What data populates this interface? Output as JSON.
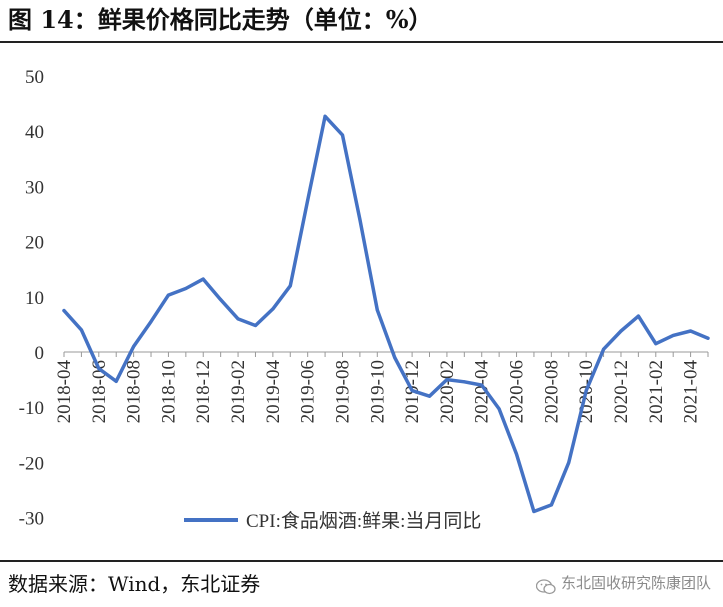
{
  "figure": {
    "title": "图 14：鲜果价格同比走势（单位：%）",
    "source": "数据来源：Wind，东北证券",
    "watermark": "东北固收研究陈康团队",
    "watermark_icon": "wechat-icon"
  },
  "colors": {
    "line": "#4472C4",
    "axis": "#999999",
    "text": "#333333"
  },
  "chart_data": {
    "type": "line",
    "title": "",
    "xlabel": "",
    "ylabel": "",
    "ylim": [
      -30,
      50
    ],
    "yticks": [
      -30,
      -20,
      -10,
      0,
      10,
      20,
      30,
      40,
      50
    ],
    "grid": false,
    "legend_position": "bottom-center",
    "x": [
      "2018-04",
      "2018-05",
      "2018-06",
      "2018-07",
      "2018-08",
      "2018-09",
      "2018-10",
      "2018-11",
      "2018-12",
      "2019-01",
      "2019-02",
      "2019-03",
      "2019-04",
      "2019-05",
      "2019-06",
      "2019-07",
      "2019-08",
      "2019-09",
      "2019-10",
      "2019-11",
      "2019-12",
      "2020-01",
      "2020-02",
      "2020-03",
      "2020-04",
      "2020-05",
      "2020-06",
      "2020-07",
      "2020-08",
      "2020-09",
      "2020-10",
      "2020-11",
      "2020-12",
      "2021-01",
      "2021-02",
      "2021-03",
      "2021-04",
      "2021-05"
    ],
    "xtick_labels": [
      "2018-04",
      "2018-06",
      "2018-08",
      "2018-10",
      "2018-12",
      "2019-02",
      "2019-04",
      "2019-06",
      "2019-08",
      "2019-10",
      "2019-12",
      "2020-02",
      "2020-04",
      "2020-06",
      "2020-08",
      "2020-10",
      "2020-12",
      "2021-02",
      "2021-04"
    ],
    "series": [
      {
        "name": "CPI:食品烟酒:鲜果:当月同比",
        "values": [
          7.5,
          4.0,
          -3.0,
          -5.3,
          1.0,
          5.5,
          10.3,
          11.5,
          13.2,
          9.5,
          6.0,
          4.8,
          7.8,
          12.0,
          27.5,
          42.7,
          39.3,
          24.0,
          7.6,
          -1.0,
          -7.0,
          -8.0,
          -5.0,
          -5.4,
          -6.0,
          -10.3,
          -18.5,
          -28.9,
          -27.7,
          -20.0,
          -7.0,
          0.5,
          3.8,
          6.5,
          1.5,
          3.0,
          3.8,
          2.5
        ]
      }
    ]
  }
}
